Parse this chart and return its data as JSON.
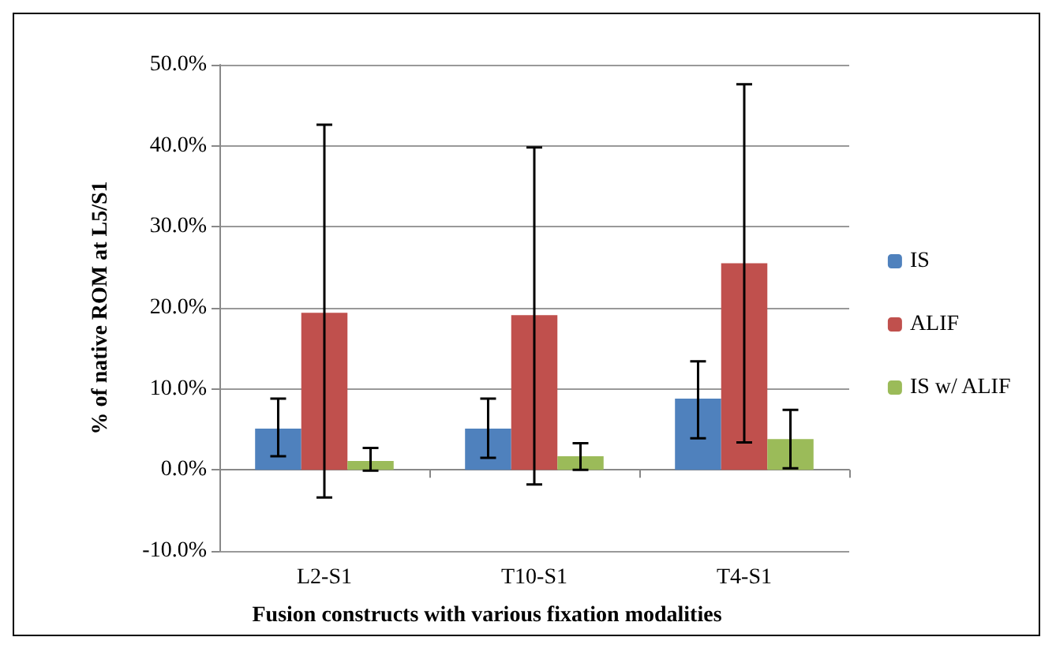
{
  "chart_data": {
    "type": "bar",
    "xlabel": "Fusion constructs with various fixation modalities",
    "ylabel": "% of native ROM at L5/S1",
    "categories": [
      "L2-S1",
      "T10-S1",
      "T4-S1"
    ],
    "series": [
      {
        "name": "IS",
        "color": "#4f81bd",
        "values": [
          5.1,
          5.1,
          8.8
        ],
        "errors": [
          [
            1.7,
            8.8
          ],
          [
            1.5,
            8.8
          ],
          [
            3.9,
            13.4
          ]
        ]
      },
      {
        "name": "ALIF",
        "color": "#c0504d",
        "values": [
          19.4,
          19.1,
          25.5
        ],
        "errors": [
          [
            -3.4,
            42.6
          ],
          [
            -1.8,
            39.8
          ],
          [
            3.4,
            47.6
          ]
        ]
      },
      {
        "name": "IS w/ ALIF",
        "color": "#9bbb59",
        "values": [
          1.1,
          1.7,
          3.8
        ],
        "errors": [
          [
            -0.1,
            2.7
          ],
          [
            0.0,
            3.3
          ],
          [
            0.2,
            7.4
          ]
        ]
      }
    ],
    "ylim": [
      -10,
      50
    ],
    "yticks": [
      {
        "value": -10,
        "label": "-10.0%"
      },
      {
        "value": 0,
        "label": "0.0%"
      },
      {
        "value": 10,
        "label": "10.0%"
      },
      {
        "value": 20,
        "label": "20.0%"
      },
      {
        "value": 30,
        "label": "30.0%"
      },
      {
        "value": 40,
        "label": "40.0%"
      },
      {
        "value": 50,
        "label": "50.0%"
      }
    ],
    "grid": "y",
    "legend": "right"
  }
}
